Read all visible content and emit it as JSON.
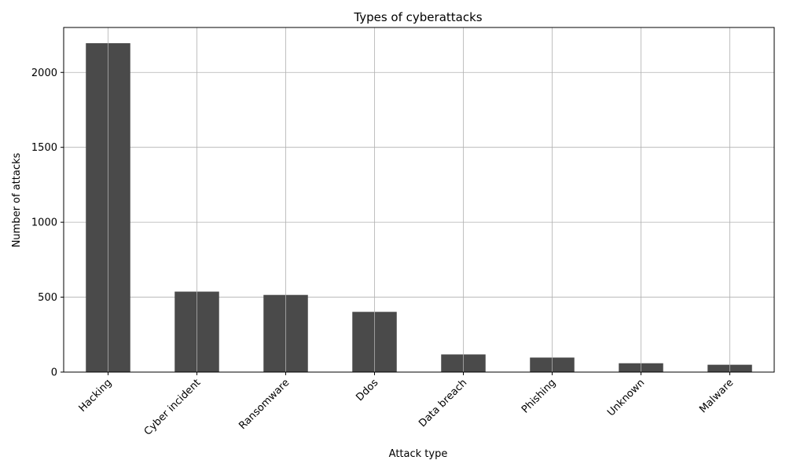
{
  "chart_data": {
    "type": "bar",
    "title": "Types of cyberattacks",
    "xlabel": "Attack type",
    "ylabel": "Number of attacks",
    "categories": [
      "Hacking",
      "Cyber incident",
      "Ransomware",
      "Ddos",
      "Data breach",
      "Phishing",
      "Unknown",
      "Malware"
    ],
    "values": [
      2195,
      537,
      515,
      402,
      118,
      97,
      59,
      49
    ],
    "ylim": [
      0,
      2300
    ],
    "yticks": [
      0,
      500,
      1000,
      1500,
      2000
    ],
    "grid": true,
    "bar_color": "#4a4a4a",
    "grid_color": "#b0b0b0"
  }
}
